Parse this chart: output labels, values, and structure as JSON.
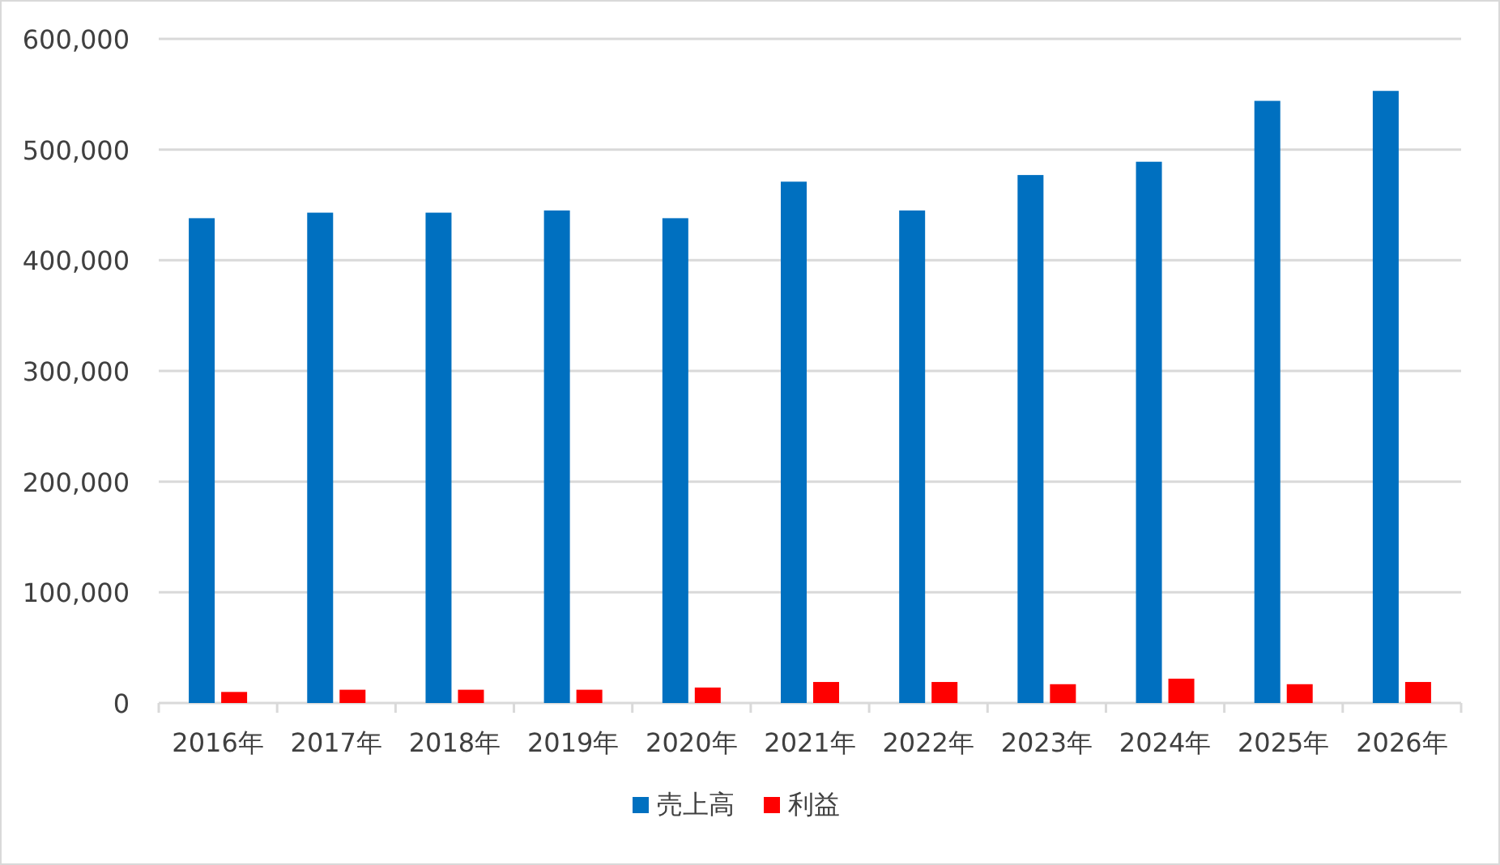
{
  "chart_data": {
    "type": "bar",
    "categories": [
      "2016年",
      "2017年",
      "2018年",
      "2019年",
      "2020年",
      "2021年",
      "2022年",
      "2023年",
      "2024年",
      "2025年",
      "2026年"
    ],
    "series": [
      {
        "name": "売上高",
        "color": "#0070c0",
        "values": [
          438000,
          443000,
          443000,
          445000,
          438000,
          471000,
          445000,
          477000,
          489000,
          544000,
          553000
        ]
      },
      {
        "name": "利益",
        "color": "#ff0000",
        "values": [
          10000,
          12000,
          12000,
          12000,
          14000,
          19000,
          19000,
          17000,
          22000,
          17000,
          19000
        ]
      }
    ],
    "ylim": [
      0,
      600000
    ],
    "yticks": [
      {
        "value": 0,
        "label": "0"
      },
      {
        "value": 100000,
        "label": "100,000"
      },
      {
        "value": 200000,
        "label": "200,000"
      },
      {
        "value": 300000,
        "label": "300,000"
      },
      {
        "value": 400000,
        "label": "400,000"
      },
      {
        "value": 500000,
        "label": "500,000"
      },
      {
        "value": 600000,
        "label": "600,000"
      }
    ],
    "grid": "y",
    "legend": "bottom"
  }
}
